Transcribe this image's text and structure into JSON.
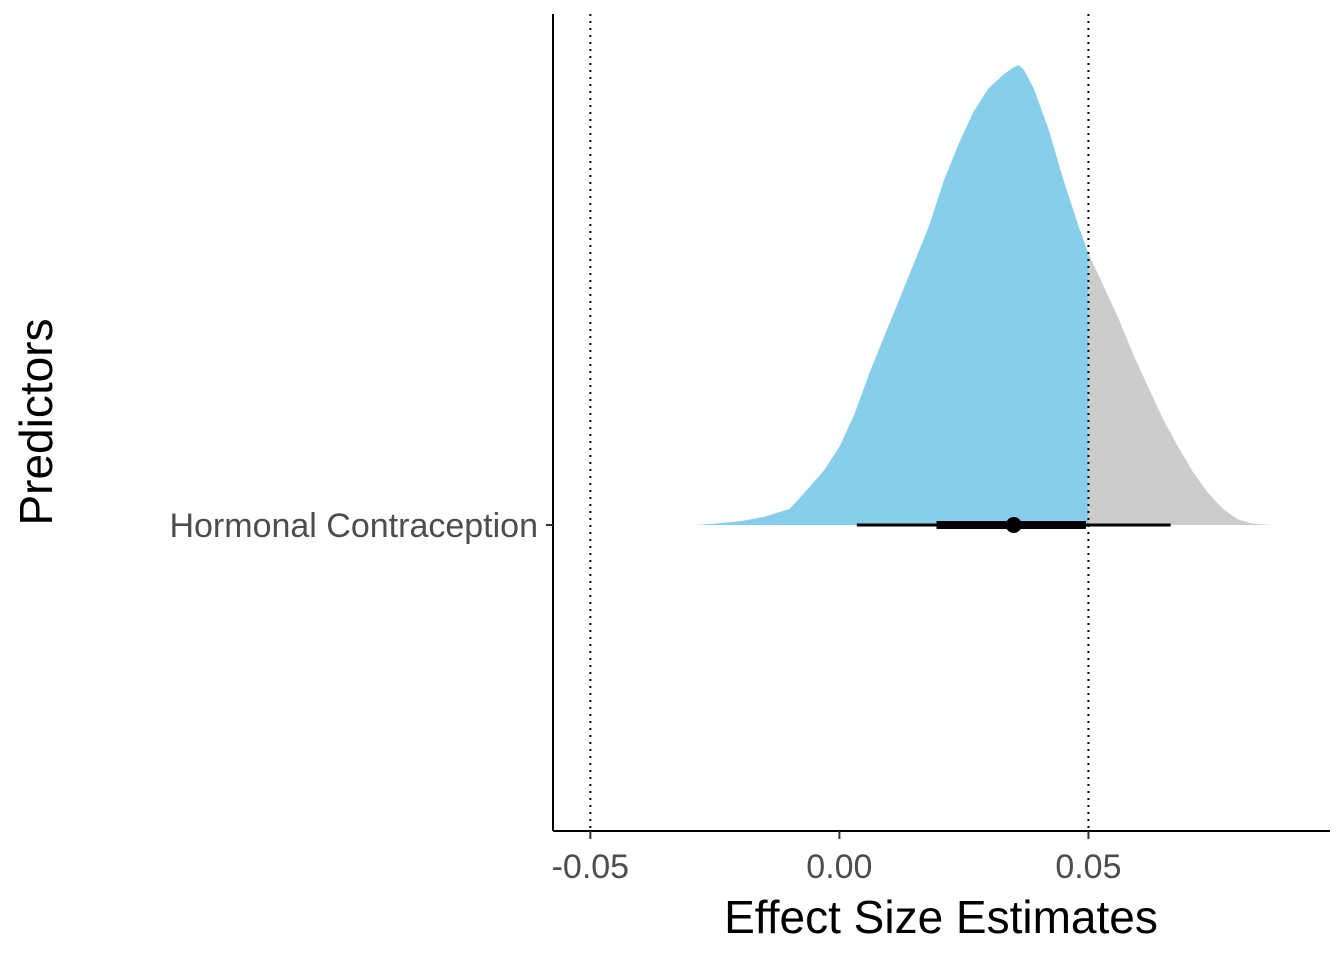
{
  "chart_data": {
    "type": "area",
    "title": "",
    "xlabel": "Effect Size Estimates",
    "ylabel": "Predictors",
    "xlim": [
      -0.0575,
      0.0985
    ],
    "x_ticks": [
      -0.05,
      0.0,
      0.05
    ],
    "x_tick_labels": [
      "-0.05",
      "0.00",
      "0.05"
    ],
    "categories": [
      "Hormonal Contraception"
    ],
    "reference_lines": [
      -0.05,
      0.05
    ],
    "rope_upper": 0.05,
    "density": {
      "x": [
        -0.029,
        -0.025,
        -0.02,
        -0.015,
        -0.01,
        -0.007,
        -0.003,
        0.0,
        0.003,
        0.006,
        0.009,
        0.012,
        0.015,
        0.018,
        0.021,
        0.024,
        0.027,
        0.03,
        0.033,
        0.035,
        0.036,
        0.037,
        0.039,
        0.042,
        0.045,
        0.048,
        0.05,
        0.053,
        0.056,
        0.059,
        0.062,
        0.065,
        0.068,
        0.071,
        0.074,
        0.077,
        0.08,
        0.083,
        0.086,
        0.09
      ],
      "y": [
        0.0,
        0.003,
        0.008,
        0.018,
        0.035,
        0.07,
        0.12,
        0.17,
        0.24,
        0.33,
        0.41,
        0.49,
        0.57,
        0.65,
        0.75,
        0.83,
        0.9,
        0.95,
        0.98,
        0.995,
        1.0,
        0.99,
        0.95,
        0.86,
        0.75,
        0.65,
        0.59,
        0.52,
        0.45,
        0.37,
        0.3,
        0.23,
        0.17,
        0.115,
        0.07,
        0.035,
        0.012,
        0.003,
        0.0005,
        0.0
      ]
    },
    "point_estimate": 0.035,
    "interval_inner": [
      0.0195,
      0.0495
    ],
    "interval_outer": [
      0.0035,
      0.0665
    ],
    "colors": {
      "inside_rope": "#87ceeb",
      "outside_rope": "#cccccc",
      "interval": "#000000",
      "reference_line": "#000000"
    },
    "grid": false
  }
}
